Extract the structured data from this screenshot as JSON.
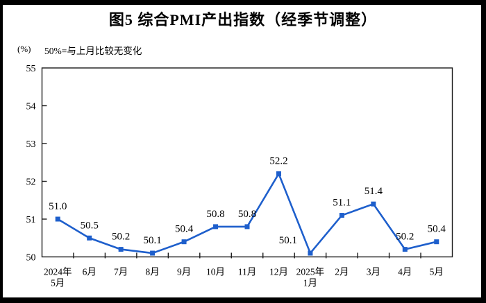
{
  "chart_data": {
    "type": "line",
    "title": "图5  综合PMI产出指数（经季节调整）",
    "unit_label": "(%)",
    "note": "50%=与上月比较无变化",
    "categories": [
      "2024年5月",
      "6月",
      "7月",
      "8月",
      "9月",
      "10月",
      "11月",
      "12月",
      "2025年1月",
      "2月",
      "3月",
      "4月",
      "5月"
    ],
    "category_axis_labels": [
      [
        "2024年",
        "5月"
      ],
      [
        "6月"
      ],
      [
        "7月"
      ],
      [
        "8月"
      ],
      [
        "9月"
      ],
      [
        "10月"
      ],
      [
        "11月"
      ],
      [
        "12月"
      ],
      [
        "2025年",
        "1月"
      ],
      [
        "2月"
      ],
      [
        "3月"
      ],
      [
        "4月"
      ],
      [
        "5月"
      ]
    ],
    "values": [
      51.0,
      50.5,
      50.2,
      50.1,
      50.4,
      50.8,
      50.8,
      52.2,
      50.1,
      51.1,
      51.4,
      50.2,
      50.4
    ],
    "value_label_decimals": 1,
    "ylim": [
      50,
      55
    ],
    "y_ticks": [
      50,
      51,
      52,
      53,
      54,
      55
    ],
    "grid": false,
    "legend": "none",
    "marker": "square",
    "line_color": "#1E5FCC",
    "axis_color": "#1a1a1a",
    "text_color": "#000000",
    "value_label_offsets": {
      "8": {
        "dx": -32,
        "dy": 0
      }
    }
  }
}
